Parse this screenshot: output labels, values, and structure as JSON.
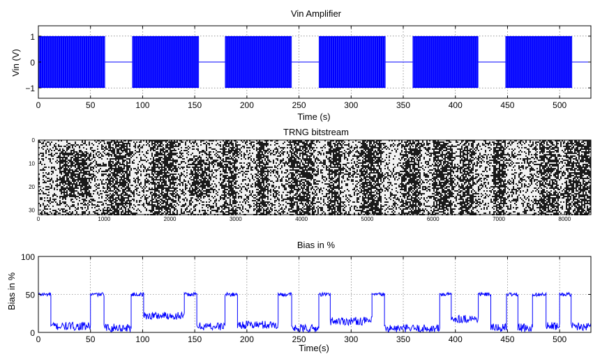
{
  "chart_data": [
    {
      "type": "line",
      "title": "Vin Amplifier",
      "xlabel": "Time (s)",
      "ylabel": "Vin (V)",
      "xlim": [
        0,
        530
      ],
      "ylim": [
        -1.4,
        1.4
      ],
      "xticks": [
        0,
        50,
        100,
        150,
        200,
        250,
        300,
        350,
        400,
        450,
        500
      ],
      "yticks": [
        -1,
        0,
        1
      ],
      "grid": true,
      "color": "#0000ff",
      "signal": "square wave bursts between -1 and 1, zero between bursts",
      "bursts": [
        [
          0,
          64
        ],
        [
          90,
          154
        ],
        [
          179,
          243
        ],
        [
          269,
          333
        ],
        [
          359,
          422
        ],
        [
          448,
          512
        ]
      ]
    },
    {
      "type": "heatmap",
      "title": "TRNG bitstream",
      "xlim": [
        0,
        8400
      ],
      "ylim": [
        32,
        0
      ],
      "xticks": [
        0,
        1000,
        2000,
        3000,
        4000,
        5000,
        6000,
        7000,
        8000
      ],
      "yticks": [
        0,
        10,
        20,
        30
      ],
      "grid": false,
      "colormap": "gray",
      "dark_regions": [
        [
          300,
          800,
          5,
          24
        ],
        [
          1050,
          1400,
          0,
          32
        ],
        [
          1700,
          2100,
          0,
          32
        ],
        [
          2300,
          2600,
          8,
          24
        ],
        [
          2800,
          3000,
          0,
          32
        ],
        [
          3300,
          3500,
          0,
          32
        ],
        [
          3800,
          4200,
          0,
          32
        ],
        [
          4400,
          4600,
          0,
          32
        ],
        [
          4900,
          5200,
          0,
          32
        ],
        [
          5500,
          5800,
          0,
          32
        ],
        [
          6000,
          6300,
          0,
          32
        ],
        [
          6400,
          6600,
          0,
          32
        ],
        [
          6900,
          7100,
          0,
          32
        ],
        [
          7600,
          7900,
          0,
          32
        ],
        [
          8000,
          8400,
          0,
          32
        ]
      ]
    },
    {
      "type": "line",
      "title": "Bias in %",
      "xlabel": "Time(s)",
      "ylabel": "Bias in %",
      "xlim": [
        0,
        530
      ],
      "ylim": [
        0,
        100
      ],
      "xticks": [
        0,
        50,
        100,
        150,
        200,
        250,
        300,
        350,
        400,
        450,
        500
      ],
      "yticks": [
        0,
        50,
        100
      ],
      "grid": true,
      "color": "#0000ff",
      "high_level": 50,
      "high_intervals": [
        [
          0,
          12
        ],
        [
          50,
          63
        ],
        [
          89,
          101
        ],
        [
          140,
          152
        ],
        [
          179,
          191
        ],
        [
          230,
          243
        ],
        [
          269,
          280
        ],
        [
          320,
          332
        ],
        [
          385,
          396
        ],
        [
          422,
          434
        ],
        [
          449,
          460
        ],
        [
          474,
          487
        ],
        [
          500,
          511
        ]
      ],
      "low_levels": [
        [
          12,
          50,
          8
        ],
        [
          63,
          89,
          6
        ],
        [
          101,
          140,
          22
        ],
        [
          152,
          179,
          8
        ],
        [
          191,
          230,
          10
        ],
        [
          243,
          269,
          5
        ],
        [
          280,
          320,
          15
        ],
        [
          332,
          385,
          5
        ],
        [
          396,
          422,
          18
        ],
        [
          434,
          449,
          6
        ],
        [
          460,
          474,
          6
        ],
        [
          487,
          500,
          8
        ],
        [
          511,
          530,
          8
        ]
      ]
    }
  ]
}
